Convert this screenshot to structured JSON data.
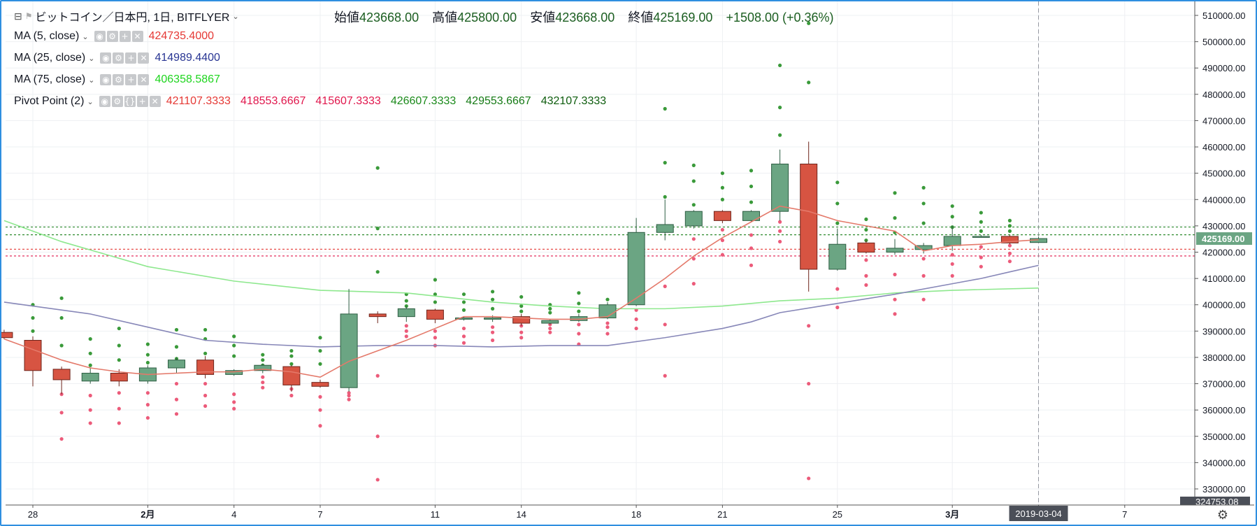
{
  "header": {
    "title": "ビットコイン／日本円, 1日, BITFLYER",
    "ohlc": [
      {
        "label": "始値",
        "value": "423668.00"
      },
      {
        "label": "高値",
        "value": "425800.00"
      },
      {
        "label": "安値",
        "value": "423668.00"
      },
      {
        "label": "終値",
        "value": "425169.00"
      }
    ],
    "change": "+1508.00 (+0.36%)"
  },
  "indicators": [
    {
      "name": "MA (5, close)",
      "values": [
        "424735.4000"
      ],
      "colors": [
        "#e53935"
      ]
    },
    {
      "name": "MA (25, close)",
      "values": [
        "414989.4400"
      ],
      "colors": [
        "#283593"
      ]
    },
    {
      "name": "MA (75, close)",
      "values": [
        "406358.5867"
      ],
      "colors": [
        "#1ed51e"
      ]
    },
    {
      "name": "Pivot Point (2)",
      "values": [
        "421107.3333",
        "418553.6667",
        "415607.3333",
        "426607.3333",
        "429553.6667",
        "432107.3333"
      ],
      "colors": [
        "#e53935",
        "#e0164c",
        "#e0164c",
        "#1b8a1b",
        "#157a15",
        "#0d5c0d"
      ]
    }
  ],
  "colors": {
    "up": "#6ba583",
    "down": "#d75442",
    "ma5": "#e4796a",
    "ma25": "#8787b8",
    "ma75": "#8ee88e",
    "pivot_up": "#3a9a3a",
    "pivot_down": "#ec5b7a"
  },
  "chart_data": {
    "type": "candlestick",
    "ylim": [
      327000,
      515000
    ],
    "y_ticks": [
      "510000.00",
      "500000.00",
      "490000.00",
      "480000.00",
      "470000.00",
      "460000.00",
      "450000.00",
      "440000.00",
      "430000.00",
      "420000.00",
      "410000.00",
      "400000.00",
      "390000.00",
      "380000.00",
      "370000.00",
      "360000.00",
      "350000.00",
      "340000.00",
      "330000.00"
    ],
    "y_tick_values": [
      510000,
      500000,
      490000,
      480000,
      470000,
      460000,
      450000,
      440000,
      430000,
      420000,
      410000,
      400000,
      390000,
      380000,
      370000,
      360000,
      350000,
      340000,
      330000
    ],
    "last_price_label": "425169.00",
    "last_price": 425169,
    "bottom_price_label": "324753.08",
    "x_labels": [
      {
        "day": 0,
        "text": "28"
      },
      {
        "day": 4,
        "text": "2月"
      },
      {
        "day": 7,
        "text": "4"
      },
      {
        "day": 10,
        "text": "7"
      },
      {
        "day": 14,
        "text": "11"
      },
      {
        "day": 17,
        "text": "14"
      },
      {
        "day": 21,
        "text": "18"
      },
      {
        "day": 24,
        "text": "21"
      },
      {
        "day": 28,
        "text": "25"
      },
      {
        "day": 32,
        "text": "3月"
      },
      {
        "day": 35,
        "text": "4"
      },
      {
        "day": 38,
        "text": "7"
      }
    ],
    "cursor_date": "2019-03-04",
    "cursor_day": 35,
    "candles": [
      {
        "day": -1,
        "o": 389500,
        "h": 390500,
        "l": 387000,
        "c": 387500
      },
      {
        "day": 0,
        "o": 386500,
        "h": 388000,
        "l": 369000,
        "c": 375000
      },
      {
        "day": 1,
        "o": 375500,
        "h": 376500,
        "l": 366000,
        "c": 371500
      },
      {
        "day": 2,
        "o": 371000,
        "h": 376000,
        "l": 370000,
        "c": 374000
      },
      {
        "day": 3,
        "o": 374000,
        "h": 375500,
        "l": 369000,
        "c": 371000
      },
      {
        "day": 4,
        "o": 371000,
        "h": 377000,
        "l": 370000,
        "c": 376000
      },
      {
        "day": 5,
        "o": 376000,
        "h": 380000,
        "l": 374000,
        "c": 379000
      },
      {
        "day": 6,
        "o": 379000,
        "h": 380500,
        "l": 372000,
        "c": 373500
      },
      {
        "day": 7,
        "o": 373500,
        "h": 375500,
        "l": 373000,
        "c": 375000
      },
      {
        "day": 8,
        "o": 375000,
        "h": 377500,
        "l": 374000,
        "c": 377000
      },
      {
        "day": 9,
        "o": 376500,
        "h": 377000,
        "l": 367000,
        "c": 369500
      },
      {
        "day": 10,
        "o": 370500,
        "h": 371500,
        "l": 368500,
        "c": 369000
      },
      {
        "day": 11,
        "o": 368500,
        "h": 406000,
        "l": 367000,
        "c": 396500
      },
      {
        "day": 12,
        "o": 396500,
        "h": 397500,
        "l": 393000,
        "c": 395500
      },
      {
        "day": 13,
        "o": 395500,
        "h": 399500,
        "l": 393500,
        "c": 398500
      },
      {
        "day": 14,
        "o": 398000,
        "h": 398500,
        "l": 393000,
        "c": 394500
      },
      {
        "day": 15,
        "o": 394500,
        "h": 395500,
        "l": 394000,
        "c": 395000
      },
      {
        "day": 16,
        "o": 394500,
        "h": 396000,
        "l": 393500,
        "c": 395000
      },
      {
        "day": 17,
        "o": 395500,
        "h": 396500,
        "l": 392000,
        "c": 393000
      },
      {
        "day": 18,
        "o": 393000,
        "h": 394500,
        "l": 392500,
        "c": 394000
      },
      {
        "day": 19,
        "o": 394000,
        "h": 396500,
        "l": 393500,
        "c": 395500
      },
      {
        "day": 20,
        "o": 395000,
        "h": 401000,
        "l": 394500,
        "c": 400000
      },
      {
        "day": 21,
        "o": 400000,
        "h": 433000,
        "l": 399500,
        "c": 427500
      },
      {
        "day": 22,
        "o": 427500,
        "h": 440000,
        "l": 424500,
        "c": 430500
      },
      {
        "day": 23,
        "o": 430000,
        "h": 436000,
        "l": 429000,
        "c": 435500
      },
      {
        "day": 24,
        "o": 435500,
        "h": 436000,
        "l": 431000,
        "c": 432000
      },
      {
        "day": 25,
        "o": 432000,
        "h": 436000,
        "l": 431500,
        "c": 435500
      },
      {
        "day": 26,
        "o": 435500,
        "h": 459000,
        "l": 432000,
        "c": 453500
      },
      {
        "day": 27,
        "o": 453500,
        "h": 462000,
        "l": 405000,
        "c": 413500
      },
      {
        "day": 28,
        "o": 413500,
        "h": 429000,
        "l": 413000,
        "c": 423000
      },
      {
        "day": 29,
        "o": 423500,
        "h": 424500,
        "l": 419500,
        "c": 420000
      },
      {
        "day": 30,
        "o": 420000,
        "h": 425000,
        "l": 419000,
        "c": 421500
      },
      {
        "day": 31,
        "o": 421000,
        "h": 423500,
        "l": 419500,
        "c": 422500
      },
      {
        "day": 32,
        "o": 422500,
        "h": 430000,
        "l": 420500,
        "c": 426000
      },
      {
        "day": 33,
        "o": 426000,
        "h": 426500,
        "l": 425500,
        "c": 426000
      },
      {
        "day": 34,
        "o": 426000,
        "h": 426500,
        "l": 423000,
        "c": 423500
      },
      {
        "day": 35,
        "o": 423668,
        "h": 425800,
        "l": 423668,
        "c": 425169
      }
    ],
    "ma5": [
      [
        -1,
        387000
      ],
      [
        0,
        383000
      ],
      [
        1,
        379000
      ],
      [
        2,
        376000
      ],
      [
        3,
        374500
      ],
      [
        4,
        373500
      ],
      [
        5,
        374000
      ],
      [
        6,
        374500
      ],
      [
        7,
        374500
      ],
      [
        8,
        375500
      ],
      [
        9,
        374500
      ],
      [
        10,
        372500
      ],
      [
        11,
        378500
      ],
      [
        12,
        382500
      ],
      [
        13,
        386500
      ],
      [
        14,
        391000
      ],
      [
        15,
        395500
      ],
      [
        16,
        395500
      ],
      [
        17,
        395000
      ],
      [
        18,
        394500
      ],
      [
        19,
        394500
      ],
      [
        20,
        395500
      ],
      [
        21,
        402500
      ],
      [
        22,
        410000
      ],
      [
        23,
        418500
      ],
      [
        24,
        425500
      ],
      [
        25,
        431500
      ],
      [
        26,
        437500
      ],
      [
        27,
        435500
      ],
      [
        28,
        432000
      ],
      [
        29,
        430000
      ],
      [
        30,
        428000
      ],
      [
        31,
        420500
      ],
      [
        32,
        422500
      ],
      [
        33,
        423000
      ],
      [
        34,
        424000
      ],
      [
        35,
        424735
      ]
    ],
    "ma25": [
      [
        -1,
        401000
      ],
      [
        2,
        396500
      ],
      [
        4,
        391500
      ],
      [
        6,
        386500
      ],
      [
        8,
        385000
      ],
      [
        10,
        384000
      ],
      [
        12,
        384500
      ],
      [
        14,
        384500
      ],
      [
        16,
        384000
      ],
      [
        18,
        384500
      ],
      [
        20,
        384500
      ],
      [
        22,
        387500
      ],
      [
        24,
        391000
      ],
      [
        25,
        393500
      ],
      [
        26,
        397000
      ],
      [
        28,
        400500
      ],
      [
        30,
        404000
      ],
      [
        32,
        408000
      ],
      [
        33,
        410000
      ],
      [
        34,
        412500
      ],
      [
        35,
        414989
      ]
    ],
    "ma75": [
      [
        -1,
        432000
      ],
      [
        1,
        424000
      ],
      [
        4,
        414500
      ],
      [
        7,
        409000
      ],
      [
        10,
        405500
      ],
      [
        13,
        404500
      ],
      [
        16,
        401000
      ],
      [
        18,
        399500
      ],
      [
        20,
        398500
      ],
      [
        22,
        398500
      ],
      [
        24,
        399500
      ],
      [
        26,
        401500
      ],
      [
        28,
        402500
      ],
      [
        30,
        404500
      ],
      [
        32,
        405500
      ],
      [
        35,
        406358
      ]
    ],
    "pivot_lines": [
      {
        "value": 429553.67,
        "color": "#2e8b2e"
      },
      {
        "value": 426607.33,
        "color": "#2e8b2e"
      },
      {
        "value": 421107.33,
        "color": "#e53935"
      },
      {
        "value": 418553.67,
        "color": "#e0164c"
      }
    ],
    "pivot_dots": [
      {
        "day": 0,
        "up": [
          400000,
          395000,
          390000
        ],
        "down": [
          0
        ]
      },
      {
        "day": 1,
        "up": [
          402500,
          395000,
          384500
        ],
        "down": [
          366000,
          359000,
          349000
        ]
      },
      {
        "day": 2,
        "up": [
          387000,
          381500,
          377000
        ],
        "down": [
          365500,
          360000,
          355000
        ]
      },
      {
        "day": 3,
        "up": [
          391000,
          384500,
          379000
        ],
        "down": [
          366500,
          360500,
          355000
        ]
      },
      {
        "day": 4,
        "up": [
          385000,
          381000,
          378000
        ],
        "down": [
          366500,
          362000,
          357000
        ]
      },
      {
        "day": 5,
        "up": [
          390500,
          384000,
          379500
        ],
        "down": [
          370000,
          364000,
          358500
        ]
      },
      {
        "day": 6,
        "up": [
          390500,
          387000,
          381500
        ],
        "down": [
          370000,
          365500,
          361500
        ]
      },
      {
        "day": 7,
        "up": [
          388000,
          384500,
          380500
        ],
        "down": [
          366000,
          363000,
          360500
        ]
      },
      {
        "day": 8,
        "up": [
          381000,
          379000,
          377000
        ],
        "down": [
          372500,
          370500,
          368500
        ]
      },
      {
        "day": 9,
        "up": [
          382500,
          380500,
          377500
        ],
        "down": [
          371000,
          368000,
          365500
        ]
      },
      {
        "day": 10,
        "up": [
          387500,
          382500,
          377500
        ],
        "down": [
          365000,
          360000,
          354000
        ]
      },
      {
        "day": 11,
        "up": [
          374000,
          372000,
          370500
        ],
        "down": [
          366500,
          365500,
          364000
        ]
      },
      {
        "day": 12,
        "up": [
          452000,
          429000,
          412500
        ],
        "down": [
          373000,
          350000,
          333500
        ]
      },
      {
        "day": 13,
        "up": [
          404000,
          401500,
          399500
        ],
        "down": [
          392000,
          390000,
          388000
        ]
      },
      {
        "day": 14,
        "up": [
          409500,
          404000,
          401000
        ],
        "down": [
          390000,
          387500,
          384500
        ]
      },
      {
        "day": 15,
        "up": [
          404000,
          401000,
          398000
        ],
        "down": [
          391000,
          388000,
          385500
        ]
      },
      {
        "day": 16,
        "up": [
          405000,
          402000,
          398500
        ],
        "down": [
          391500,
          389500,
          386500
        ]
      },
      {
        "day": 17,
        "up": [
          403000,
          399500,
          397500
        ],
        "down": [
          392000,
          389500,
          387500
        ]
      },
      {
        "day": 18,
        "up": [
          400000,
          398500,
          397000
        ],
        "down": [
          392500,
          391000,
          389500
        ]
      },
      {
        "day": 19,
        "up": [
          404500,
          400500,
          397500
        ],
        "down": [
          392500,
          389000,
          385000
        ]
      },
      {
        "day": 20,
        "up": [
          402000,
          399500,
          397500
        ],
        "down": [
          393000,
          391500,
          389000
        ]
      },
      {
        "day": 21,
        "up": [
          413000,
          408500,
          404000
        ],
        "down": [
          398000,
          394500,
          391000
        ]
      },
      {
        "day": 22,
        "up": [
          474500,
          454000,
          441000
        ],
        "down": [
          407000,
          392500,
          373000
        ]
      },
      {
        "day": 23,
        "up": [
          453000,
          447000,
          438000
        ],
        "down": [
          425000,
          417500,
          408000
        ]
      },
      {
        "day": 24,
        "up": [
          450000,
          444500,
          440000
        ],
        "down": [
          428500,
          424500,
          419000
        ]
      },
      {
        "day": 25,
        "up": [
          451000,
          445000,
          439000
        ],
        "down": [
          426500,
          421500,
          415000
        ]
      },
      {
        "day": 26,
        "up": [
          491000,
          475000,
          464500
        ],
        "down": [
          431500,
          428000,
          424000
        ]
      },
      {
        "day": 27,
        "up": [
          507000,
          484500,
          449000
        ],
        "down": [
          392000,
          370000,
          334000
        ]
      },
      {
        "day": 28,
        "up": [
          446500,
          438500,
          431000
        ],
        "down": [
          415000,
          406000,
          399000
        ]
      },
      {
        "day": 29,
        "up": [
          432500,
          428500,
          424500
        ],
        "down": [
          417000,
          411000,
          407500
        ]
      },
      {
        "day": 30,
        "up": [
          442500,
          433000,
          427500
        ],
        "down": [
          411500,
          402000,
          396500
        ]
      },
      {
        "day": 31,
        "up": [
          444500,
          438500,
          431000
        ],
        "down": [
          417500,
          411000,
          402000
        ]
      },
      {
        "day": 32,
        "up": [
          437500,
          433500,
          429500
        ],
        "down": [
          419000,
          415500,
          411000
        ]
      },
      {
        "day": 33,
        "up": [
          435000,
          431500,
          428000
        ],
        "down": [
          422000,
          418000,
          414500
        ]
      },
      {
        "day": 34,
        "up": [
          432000,
          430000,
          428000
        ],
        "down": [
          422500,
          419500,
          416500
        ]
      }
    ]
  }
}
